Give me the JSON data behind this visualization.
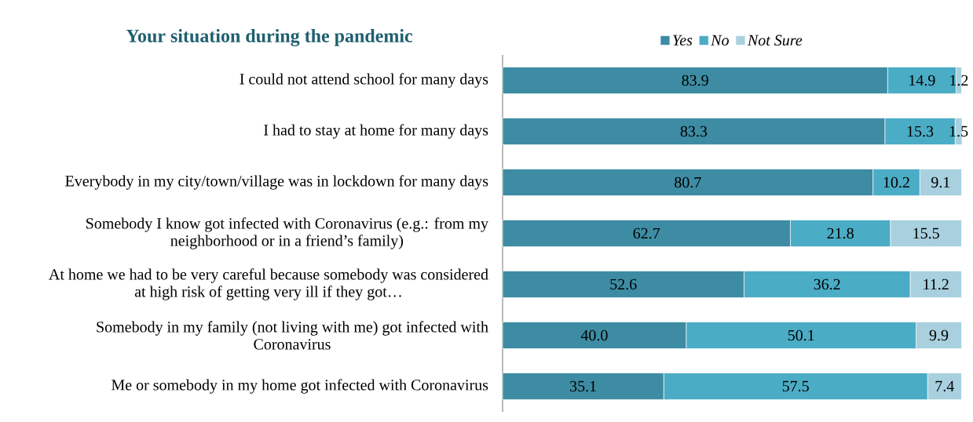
{
  "chart_data": {
    "type": "bar",
    "orientation": "horizontal",
    "stacked": true,
    "title": "Your situation during the pandemic",
    "categories": [
      "I could not attend school for many days",
      "I had to stay at home for many days",
      "Everybody in my city/town/village was in lockdown for many days",
      "Somebody I know got infected with Coronavirus (e.g.:  from my neighborhood or in a friend’s family)",
      "At home we had to be very careful because somebody was considered at high risk of getting very ill if they got…",
      "Somebody in my family (not living with me) got infected with Coronavirus",
      "Me or somebody in my home got infected with Coronavirus"
    ],
    "series": [
      {
        "name": "Yes",
        "color": "#3d8ca3",
        "values": [
          83.9,
          83.3,
          80.7,
          62.7,
          52.6,
          40.0,
          35.1
        ],
        "value_labels": [
          "83.9",
          "83.3",
          "80.7",
          "62.7",
          "52.6",
          "40.0",
          "35.1"
        ]
      },
      {
        "name": "No",
        "color": "#4bacc6",
        "values": [
          14.9,
          15.3,
          10.2,
          21.8,
          36.2,
          50.1,
          57.5
        ],
        "value_labels": [
          "14.9",
          "15.3",
          "10.2",
          "21.8",
          "36.2",
          "50.1",
          "57.5"
        ]
      },
      {
        "name": "Not Sure",
        "color": "#a8d0de",
        "values": [
          1.2,
          1.5,
          9.1,
          15.5,
          11.2,
          9.9,
          7.4
        ],
        "value_labels": [
          "1.2",
          "1.5",
          "9.1",
          "15.5",
          "11.2",
          "9.9",
          "7.4"
        ]
      }
    ],
    "xlim": [
      0,
      100.1
    ],
    "tick_labels": "y",
    "legend": "top"
  }
}
